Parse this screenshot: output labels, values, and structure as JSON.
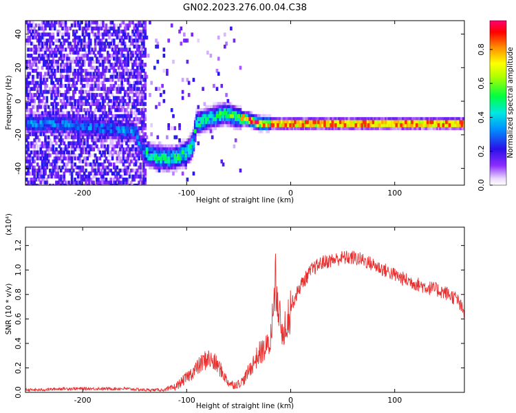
{
  "figure": {
    "title": "GN02.2023.276.00.04.C38"
  },
  "chart_data": [
    {
      "type": "heatmap",
      "title": "GN02.2023.276.00.04.C38",
      "xlabel": "Height of straight line (km)",
      "ylabel": "Frequency (Hz)",
      "xlim": [
        -255,
        167
      ],
      "ylim": [
        -50,
        48
      ],
      "xticks": [
        -200,
        -100,
        0,
        100
      ],
      "yticks": [
        -40,
        -20,
        0,
        20,
        40
      ],
      "colorbar": {
        "label": "Normalized spectral amplitude",
        "range": [
          0,
          0.97
        ],
        "ticks": [
          0.0,
          0.2,
          0.4,
          0.6,
          0.8
        ],
        "tick_labels": [
          "0.0",
          "0.2",
          "0.4",
          "0.6",
          "0.8"
        ],
        "colormap": "rainbow (white at 0 → purple → blue → cyan → green → yellow → red → magenta)"
      },
      "ridge": {
        "description": "Dominant frequency track (Hz) vs height (km)",
        "x": [
          -255,
          -220,
          -200,
          -180,
          -165,
          -150,
          -145,
          -140,
          -130,
          -120,
          -110,
          -100,
          -95,
          -92,
          -85,
          -75,
          -65,
          -55,
          -50,
          -45,
          -40,
          -35,
          -30,
          -25,
          -20,
          -10,
          0,
          25,
          50,
          75,
          100,
          125,
          150,
          167
        ],
        "y": [
          -13,
          -13,
          -15,
          -16,
          -17,
          -18,
          -28,
          -31,
          -33,
          -34,
          -33,
          -30,
          -25,
          -13,
          -11,
          -9,
          -7,
          -9,
          -10,
          -10,
          -11,
          -12,
          -13,
          -13,
          -13,
          -13,
          -13,
          -13,
          -13,
          -13,
          -13,
          -13,
          -13,
          -13
        ]
      }
    },
    {
      "type": "line",
      "title": "",
      "xlabel": "Height of straight line (km)",
      "ylabel": "SNR (10 * v/v)",
      "scale_label": "(x10⁴)",
      "xlim": [
        -255,
        167
      ],
      "ylim": [
        0,
        1.35
      ],
      "xticks": [
        -200,
        -100,
        0,
        100
      ],
      "yticks": [
        0.0,
        0.2,
        0.4,
        0.6,
        0.8,
        1.0,
        1.2
      ],
      "ytick_labels": [
        "0.0",
        "0.2",
        "0.4",
        "0.6",
        "0.8",
        "1.0",
        "1.2"
      ],
      "line_color": "#e83030",
      "series": [
        {
          "name": "",
          "x": [
            -255,
            -240,
            -220,
            -200,
            -180,
            -160,
            -140,
            -130,
            -120,
            -115,
            -110,
            -100,
            -90,
            -85,
            -80,
            -75,
            -70,
            -65,
            -60,
            -55,
            -50,
            -45,
            -40,
            -35,
            -30,
            -25,
            -20,
            -17,
            -15,
            -13,
            -11,
            -9,
            -5,
            0,
            10,
            20,
            30,
            40,
            50,
            60,
            70,
            80,
            90,
            100,
            110,
            120,
            130,
            140,
            150,
            160,
            167
          ],
          "y": [
            0.02,
            0.02,
            0.03,
            0.03,
            0.03,
            0.03,
            0.02,
            0.02,
            0.02,
            0.03,
            0.05,
            0.12,
            0.2,
            0.24,
            0.28,
            0.25,
            0.22,
            0.15,
            0.08,
            0.06,
            0.07,
            0.1,
            0.18,
            0.25,
            0.32,
            0.35,
            0.4,
            0.6,
            0.82,
            0.9,
            0.62,
            0.5,
            0.55,
            0.7,
            0.88,
            1.0,
            1.06,
            1.08,
            1.1,
            1.1,
            1.08,
            1.04,
            1.0,
            0.96,
            0.92,
            0.89,
            0.86,
            0.84,
            0.81,
            0.76,
            0.64
          ]
        }
      ]
    }
  ]
}
